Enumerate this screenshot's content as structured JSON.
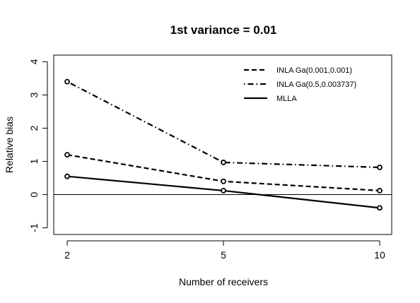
{
  "chart_data": {
    "type": "line",
    "title": "1st variance = 0.01",
    "xlabel": "Number of receivers",
    "ylabel": "Relative bias",
    "x_categories": [
      "2",
      "5",
      "10"
    ],
    "ylim": [
      -1.2,
      4.2
    ],
    "y_ticks": [
      -1,
      0,
      1,
      2,
      3,
      4
    ],
    "y_tick_labels": [
      "-1",
      "0",
      "1",
      "2",
      "3",
      "4"
    ],
    "reference_line": 0,
    "grid": false,
    "legend_position": "top-right",
    "series": [
      {
        "name": "INLA Ga(0.001,0.001)",
        "line_style": "dashed",
        "values": [
          1.2,
          0.4,
          0.12
        ]
      },
      {
        "name": "INLA Ga(0.5,0.003737)",
        "line_style": "dotdash",
        "values": [
          3.4,
          0.97,
          0.82
        ]
      },
      {
        "name": "MLLA",
        "line_style": "solid",
        "values": [
          0.55,
          0.12,
          -0.4
        ]
      }
    ]
  }
}
